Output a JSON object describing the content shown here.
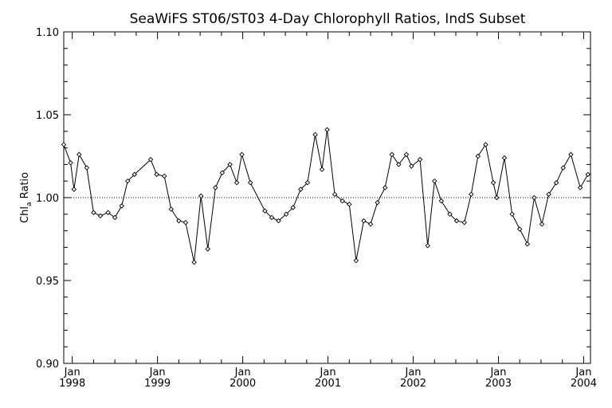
{
  "chart_data": {
    "type": "line",
    "title": "SeaWiFS ST06/ST03 4-Day Chlorophyll Ratios, IndS Subset",
    "ylabel": "Chl",
    "ylabel_sub": "a",
    "ylabel_tail": " Ratio",
    "xlabel": "",
    "ylim": [
      0.9,
      1.1
    ],
    "y_ticks": [
      "0.90",
      "0.95",
      "1.00",
      "1.05",
      "1.10"
    ],
    "y_tick_values": [
      0.9,
      0.95,
      1.0,
      1.05,
      1.1
    ],
    "x_range": [
      1997.9,
      2004.08
    ],
    "x_ticks": [
      {
        "month": "Jan",
        "year": "1998",
        "x": 1998.0
      },
      {
        "month": "Jan",
        "year": "1999",
        "x": 1999.0
      },
      {
        "month": "Jan",
        "year": "2000",
        "x": 2000.0
      },
      {
        "month": "Jan",
        "year": "2001",
        "x": 2001.0
      },
      {
        "month": "Jan",
        "year": "2002",
        "x": 2002.0
      },
      {
        "month": "Jan",
        "year": "2003",
        "x": 2003.0
      },
      {
        "month": "Jan",
        "year": "2004",
        "x": 2004.0
      }
    ],
    "reference_line": 1.0,
    "grid": false,
    "marker": "diamond",
    "series": [
      {
        "points": [
          [
            1997.9,
            1.032
          ],
          [
            1997.98,
            1.021
          ],
          [
            1998.02,
            1.005
          ],
          [
            1998.08,
            1.026
          ],
          [
            1998.17,
            1.018
          ],
          [
            1998.25,
            0.991
          ],
          [
            1998.33,
            0.989
          ],
          [
            1998.42,
            0.991
          ],
          [
            1998.5,
            0.988
          ],
          [
            1998.58,
            0.995
          ],
          [
            1998.65,
            1.01
          ],
          [
            1998.73,
            1.014
          ],
          [
            1998.92,
            1.023
          ],
          [
            1998.99,
            1.014
          ],
          [
            1999.08,
            1.013
          ],
          [
            1999.16,
            0.993
          ],
          [
            1999.25,
            0.986
          ],
          [
            1999.33,
            0.985
          ],
          [
            1999.43,
            0.961
          ],
          [
            1999.51,
            1.001
          ],
          [
            1999.59,
            0.969
          ],
          [
            1999.68,
            1.006
          ],
          [
            1999.76,
            1.015
          ],
          [
            1999.85,
            1.02
          ],
          [
            1999.93,
            1.009
          ],
          [
            1999.99,
            1.026
          ],
          [
            2000.09,
            1.009
          ],
          [
            2000.26,
            0.992
          ],
          [
            2000.34,
            0.988
          ],
          [
            2000.42,
            0.986
          ],
          [
            2000.51,
            0.99
          ],
          [
            2000.59,
            0.994
          ],
          [
            2000.68,
            1.005
          ],
          [
            2000.76,
            1.009
          ],
          [
            2000.85,
            1.038
          ],
          [
            2000.93,
            1.017
          ],
          [
            2000.99,
            1.041
          ],
          [
            2001.08,
            1.002
          ],
          [
            2001.17,
            0.998
          ],
          [
            2001.25,
            0.996
          ],
          [
            2001.33,
            0.962
          ],
          [
            2001.42,
            0.986
          ],
          [
            2001.5,
            0.984
          ],
          [
            2001.58,
            0.997
          ],
          [
            2001.67,
            1.006
          ],
          [
            2001.75,
            1.026
          ],
          [
            2001.83,
            1.02
          ],
          [
            2001.92,
            1.026
          ],
          [
            2001.98,
            1.019
          ],
          [
            2002.08,
            1.023
          ],
          [
            2002.17,
            0.971
          ],
          [
            2002.25,
            1.01
          ],
          [
            2002.33,
            0.998
          ],
          [
            2002.43,
            0.99
          ],
          [
            2002.51,
            0.986
          ],
          [
            2002.6,
            0.985
          ],
          [
            2002.68,
            1.002
          ],
          [
            2002.76,
            1.025
          ],
          [
            2002.85,
            1.032
          ],
          [
            2002.94,
            1.009
          ],
          [
            2002.98,
            1.0
          ],
          [
            2003.07,
            1.024
          ],
          [
            2003.16,
            0.99
          ],
          [
            2003.25,
            0.981
          ],
          [
            2003.34,
            0.972
          ],
          [
            2003.42,
            1.0
          ],
          [
            2003.51,
            0.984
          ],
          [
            2003.59,
            1.002
          ],
          [
            2003.68,
            1.009
          ],
          [
            2003.76,
            1.018
          ],
          [
            2003.85,
            1.026
          ],
          [
            2003.96,
            1.006
          ],
          [
            2004.05,
            1.014
          ]
        ]
      }
    ]
  }
}
